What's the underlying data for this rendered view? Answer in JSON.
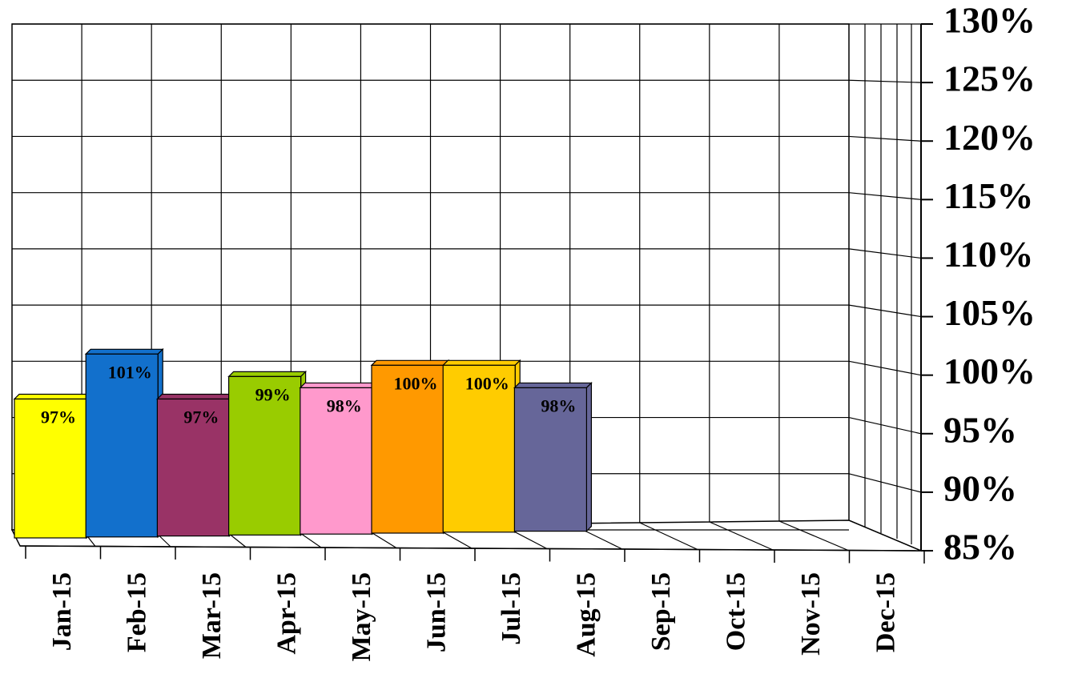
{
  "chart_data": {
    "type": "bar3d",
    "categories": [
      "Jan-15",
      "Feb-15",
      "Mar-15",
      "Apr-15",
      "May-15",
      "Jun-15",
      "Jul-15",
      "Aug-15",
      "Sep-15",
      "Oct-15",
      "Nov-15",
      "Dec-15"
    ],
    "values": [
      97,
      101,
      97,
      99,
      98,
      100,
      100,
      98,
      null,
      null,
      null,
      null
    ],
    "value_labels": [
      "97%",
      "101%",
      "97%",
      "99%",
      "98%",
      "100%",
      "100%",
      "98%",
      null,
      null,
      null,
      null
    ],
    "colors": [
      "#ffff00",
      "#1270cc",
      "#993366",
      "#99cc00",
      "#ff99cc",
      "#ff9900",
      "#ffcc00",
      "#666699",
      null,
      null,
      null,
      null
    ],
    "ylim": [
      85,
      130
    ],
    "yticks": [
      {
        "value": 85,
        "label": "85%"
      },
      {
        "value": 90,
        "label": "90%"
      },
      {
        "value": 95,
        "label": "95%"
      },
      {
        "value": 100,
        "label": "100%"
      },
      {
        "value": 105,
        "label": "105%"
      },
      {
        "value": 110,
        "label": "110%"
      },
      {
        "value": 115,
        "label": "115%"
      },
      {
        "value": 120,
        "label": "120%"
      },
      {
        "value": 125,
        "label": "125%"
      },
      {
        "value": 130,
        "label": "130%"
      }
    ],
    "grid": true
  }
}
